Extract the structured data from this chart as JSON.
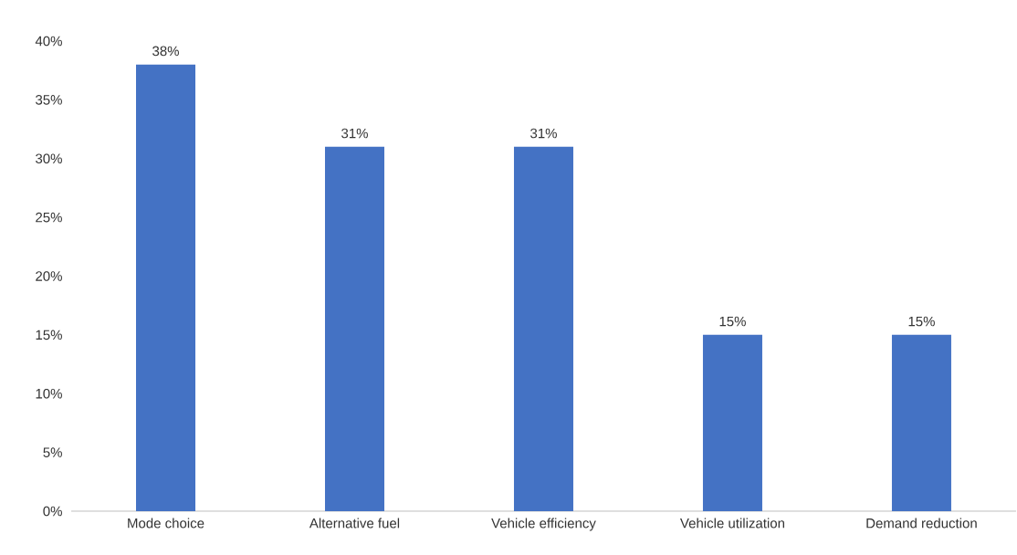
{
  "chart_data": {
    "type": "bar",
    "categories": [
      "Mode choice",
      "Alternative fuel",
      "Vehicle efficiency",
      "Vehicle utilization",
      "Demand reduction"
    ],
    "values": [
      38,
      31,
      31,
      15,
      15
    ],
    "value_labels": [
      "38%",
      "31%",
      "31%",
      "15%",
      "15%"
    ],
    "color": "#4472c4",
    "ylim": [
      0,
      40
    ],
    "yticks": [
      {
        "value": 0,
        "label": "0%"
      },
      {
        "value": 5,
        "label": "5%"
      },
      {
        "value": 10,
        "label": "10%"
      },
      {
        "value": 15,
        "label": "15%"
      },
      {
        "value": 20,
        "label": "20%"
      },
      {
        "value": 25,
        "label": "25%"
      },
      {
        "value": 30,
        "label": "30%"
      },
      {
        "value": 35,
        "label": "35%"
      },
      {
        "value": 40,
        "label": "40%"
      }
    ]
  }
}
